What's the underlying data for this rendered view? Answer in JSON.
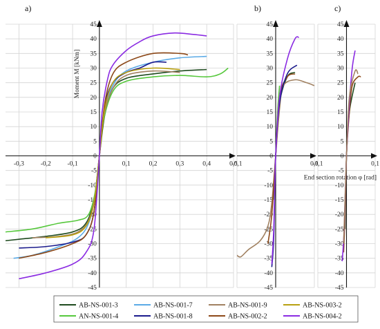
{
  "chart_data": [
    {
      "panel": "a)",
      "type": "line",
      "xlim": [
        -0.35,
        0.5
      ],
      "ylim": [
        -45,
        45
      ],
      "xticks": [
        "-0,3",
        "-0,2",
        "-0,1",
        "0,1",
        "0,2",
        "0,3",
        "0,4",
        "0,5"
      ],
      "yticks": [
        "45",
        "40",
        "35",
        "30",
        "25",
        "20",
        "15",
        "10",
        "5",
        "0",
        "-5",
        "-10",
        "-15",
        "-20",
        "-25",
        "-30",
        "-35",
        "-40",
        "-45"
      ],
      "ylabel": "Moment M [kNm]",
      "grid": true,
      "series": [
        {
          "name": "AB-NS-001-3",
          "color": "#1e4a1e",
          "x": [
            -0.35,
            -0.3,
            -0.2,
            -0.1,
            -0.05,
            -0.02,
            0,
            0.02,
            0.05,
            0.1,
            0.2,
            0.3,
            0.4
          ],
          "y": [
            -29,
            -28.5,
            -27.5,
            -26,
            -23,
            -15,
            0,
            14,
            23,
            26.5,
            28,
            29,
            29.5
          ]
        },
        {
          "name": "AN-NS-001-4",
          "color": "#56c83c",
          "x": [
            -0.35,
            -0.25,
            -0.15,
            -0.08,
            -0.04,
            -0.015,
            0,
            0.015,
            0.05,
            0.1,
            0.2,
            0.3,
            0.4,
            0.45,
            0.48
          ],
          "y": [
            -26,
            -25,
            -23,
            -22,
            -20,
            -12,
            0,
            12,
            22,
            25.5,
            27,
            27.5,
            27,
            28,
            30
          ]
        },
        {
          "name": "AB-NS-001-7",
          "color": "#5aaae6",
          "x": [
            -0.32,
            -0.25,
            -0.15,
            -0.08,
            -0.04,
            -0.015,
            0,
            0.015,
            0.05,
            0.1,
            0.2,
            0.3,
            0.4
          ],
          "y": [
            -35,
            -34,
            -31,
            -28,
            -23,
            -13,
            0,
            14,
            24,
            29,
            32,
            33.5,
            34
          ]
        },
        {
          "name": "AB-NS-001-8",
          "color": "#1a1a8c",
          "x": [
            -0.3,
            -0.2,
            -0.1,
            -0.05,
            -0.02,
            0,
            0.02,
            0.05,
            0.1,
            0.15,
            0.2,
            0.25
          ],
          "y": [
            -31.5,
            -31,
            -29.5,
            -27,
            -19,
            0,
            17,
            25,
            28.5,
            30,
            32,
            32
          ]
        },
        {
          "name": "AB-NS-001-9",
          "color": "#a08060",
          "x": [
            -0.25,
            -0.15,
            -0.08,
            -0.04,
            -0.015,
            0,
            0.015,
            0.05,
            0.1,
            0.2,
            0.3
          ],
          "y": [
            -28,
            -27.5,
            -26,
            -22,
            -13,
            0,
            13,
            23,
            27.5,
            29,
            28.5
          ]
        },
        {
          "name": "AB-NS-002-2",
          "color": "#8c4818",
          "x": [
            -0.3,
            -0.2,
            -0.1,
            -0.05,
            -0.02,
            0,
            0.02,
            0.05,
            0.1,
            0.2,
            0.3,
            0.33
          ],
          "y": [
            -35,
            -33,
            -30,
            -27,
            -19,
            0,
            18,
            28,
            32,
            35,
            35,
            34.5
          ]
        },
        {
          "name": "AB-NS-003-2",
          "color": "#b8a010",
          "x": [
            -0.2,
            -0.1,
            -0.05,
            -0.02,
            0,
            0.02,
            0.05,
            0.1,
            0.2,
            0.3
          ],
          "y": [
            -28,
            -27,
            -24,
            -16,
            0,
            16,
            25,
            28.5,
            30,
            29.5
          ]
        },
        {
          "name": "AB-NS-004-2",
          "color": "#8a2be2",
          "x": [
            -0.3,
            -0.2,
            -0.1,
            -0.05,
            -0.02,
            0,
            0.01,
            0.03,
            0.05,
            0.1,
            0.15,
            0.2,
            0.28,
            0.35,
            0.4
          ],
          "y": [
            -42,
            -40,
            -37,
            -33,
            -25,
            0,
            15,
            26,
            31,
            36,
            39,
            41,
            42,
            41.5,
            41
          ]
        }
      ]
    },
    {
      "panel": "b)",
      "type": "line",
      "xlim": [
        -0.1,
        0.1
      ],
      "ylim": [
        -45,
        45
      ],
      "xticks": [
        "-0,1",
        "0,1"
      ],
      "yticks": [
        "45",
        "40",
        "35",
        "30",
        "25",
        "20",
        "15",
        "10",
        "5",
        "0",
        "-5",
        "-10",
        "-15",
        "-20",
        "-25",
        "-30",
        "-35",
        "-40",
        "-45"
      ],
      "series": [
        {
          "name": "AB-NS-001-3",
          "color": "#1e4a1e",
          "x": [
            0,
            0.01,
            0.03,
            0.05
          ],
          "y": [
            0,
            18,
            27,
            28.5
          ]
        },
        {
          "name": "AN-NS-001-4",
          "color": "#56c83c",
          "x": [
            -0.005,
            -0.001,
            0,
            0.005,
            0.01
          ],
          "y": [
            -15,
            -5,
            0,
            15,
            24
          ]
        },
        {
          "name": "AB-NS-001-9",
          "color": "#a08060",
          "x": [
            -0.1,
            -0.09,
            -0.07,
            -0.04,
            -0.02,
            -0.01,
            0,
            0.01,
            0.02,
            0.05,
            0.08,
            0.1
          ],
          "y": [
            -34,
            -34.5,
            -32,
            -29,
            -24,
            -16,
            0,
            16,
            24,
            26,
            25,
            24
          ]
        },
        {
          "name": "AB-NS-002-2",
          "color": "#8c4818",
          "x": [
            -0.02,
            -0.01,
            0,
            0.01,
            0.03,
            0.05
          ],
          "y": [
            -30,
            -20,
            0,
            20,
            27,
            28
          ]
        },
        {
          "name": "AB-NS-001-8",
          "color": "#1a1a8c",
          "x": [
            -0.01,
            -0.005,
            0,
            0.01,
            0.03,
            0.055
          ],
          "y": [
            -38,
            -28,
            0,
            18,
            28,
            31
          ]
        },
        {
          "name": "AB-NS-004-2",
          "color": "#8a2be2",
          "x": [
            -0.01,
            -0.005,
            0,
            0.01,
            0.03,
            0.05,
            0.06
          ],
          "y": [
            -37,
            -25,
            0,
            20,
            33,
            40,
            40.5
          ]
        }
      ]
    },
    {
      "panel": "c)",
      "type": "line",
      "xlim": [
        -0.1,
        0.1
      ],
      "ylim": [
        -45,
        45
      ],
      "xticks": [
        "-0,1",
        "0,1"
      ],
      "xlabel": "End section rotation φ [rad]",
      "yticks": [
        "45",
        "40",
        "35",
        "30",
        "25",
        "20",
        "15",
        "10",
        "5",
        "0",
        "-5",
        "-10",
        "-15",
        "-20",
        "-25",
        "-30",
        "-35",
        "-40",
        "-45"
      ],
      "series": [
        {
          "name": "AB-NS-001-3",
          "color": "#1e4a1e",
          "x": [
            -0.005,
            0,
            0.01,
            0.03
          ],
          "y": [
            -25,
            0,
            15,
            25
          ]
        },
        {
          "name": "AB-NS-002-2",
          "color": "#8c4818",
          "x": [
            -0.01,
            -0.005,
            0,
            0.01,
            0.02,
            0.04,
            0.05
          ],
          "y": [
            -33,
            -20,
            0,
            15,
            24,
            27,
            27
          ]
        },
        {
          "name": "AB-NS-004-2",
          "color": "#8a2be2",
          "x": [
            -0.015,
            -0.008,
            0,
            0.01,
            0.02,
            0.03
          ],
          "y": [
            -36,
            -25,
            0,
            18,
            30,
            36
          ]
        },
        {
          "name": "AB-NS-001-9",
          "color": "#a08060",
          "x": [
            -0.01,
            0,
            0.01,
            0.03,
            0.04
          ],
          "y": [
            -30,
            0,
            20,
            29,
            28
          ]
        }
      ]
    }
  ],
  "legend": {
    "placement": "bottom",
    "items": [
      {
        "label": "AB-NS-001-3",
        "color": "#1e4a1e"
      },
      {
        "label": "AB-NS-001-7",
        "color": "#5aaae6"
      },
      {
        "label": "AB-NS-001-9",
        "color": "#a08060"
      },
      {
        "label": "AB-NS-003-2",
        "color": "#b8a010"
      },
      {
        "label": "AN-NS-001-4",
        "color": "#56c83c"
      },
      {
        "label": "AB-NS-001-8",
        "color": "#1a1a8c"
      },
      {
        "label": "AB-NS-002-2",
        "color": "#8c4818"
      },
      {
        "label": "AB-NS-004-2",
        "color": "#8a2be2"
      }
    ]
  }
}
